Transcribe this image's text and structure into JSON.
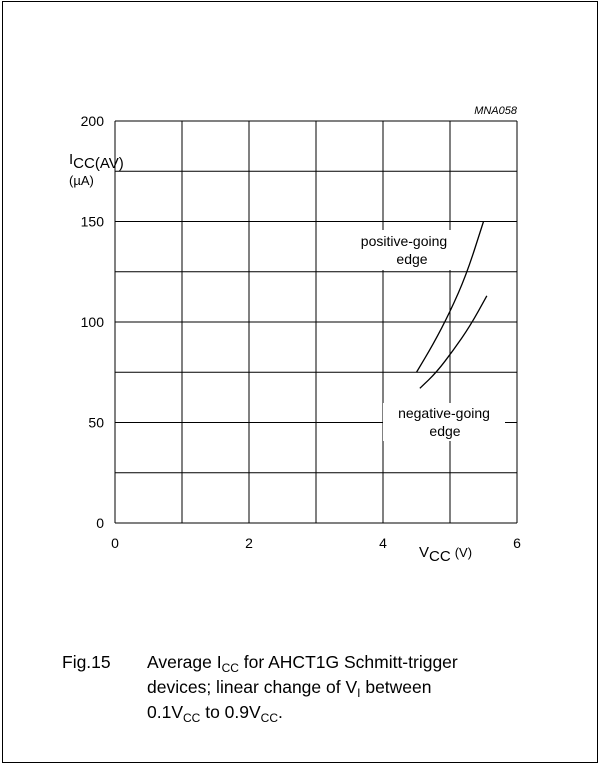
{
  "chart_data": {
    "type": "line",
    "code": "MNA058",
    "xlim": [
      0,
      6
    ],
    "ylim": [
      0,
      200
    ],
    "x_ticks": [
      0,
      1,
      2,
      3,
      4,
      5,
      6
    ],
    "x_tick_labels": [
      "0",
      "",
      "2",
      "",
      "4",
      "",
      "6"
    ],
    "y_ticks": [
      0,
      25,
      50,
      75,
      100,
      125,
      150,
      175,
      200
    ],
    "y_tick_labels": [
      "0",
      "",
      "50",
      "",
      "100",
      "",
      "150",
      "",
      "200"
    ],
    "xlabel": {
      "main": "V",
      "sub": "CC",
      "unit": "(V)"
    },
    "ylabel": {
      "main": "I",
      "sub": "CC(AV)",
      "unit": "(µA)"
    },
    "grid": true,
    "series": [
      {
        "name": "positive-going edge",
        "label_lines": [
          "positive-going",
          "edge"
        ],
        "x": [
          4.5,
          4.75,
          5.0,
          5.25,
          5.5
        ],
        "y": [
          75,
          89,
          105,
          124,
          150
        ]
      },
      {
        "name": "negative-going edge",
        "label_lines": [
          "negative-going",
          "edge"
        ],
        "x": [
          4.55,
          4.8,
          5.05,
          5.3,
          5.55
        ],
        "y": [
          67,
          75,
          86,
          98,
          113
        ]
      }
    ]
  },
  "caption": {
    "fig": "Fig.15",
    "line1_a": "Average I",
    "line1_sub": "CC",
    "line1_b": " for AHCT1G Schmitt-trigger",
    "line2_a": "devices; linear change of V",
    "line2_sub": "I",
    "line2_b": " between",
    "line3_a": "0.1V",
    "line3_sub1": "CC",
    "line3_b": " to 0.9V",
    "line3_sub2": "CC",
    "line3_c": "."
  }
}
